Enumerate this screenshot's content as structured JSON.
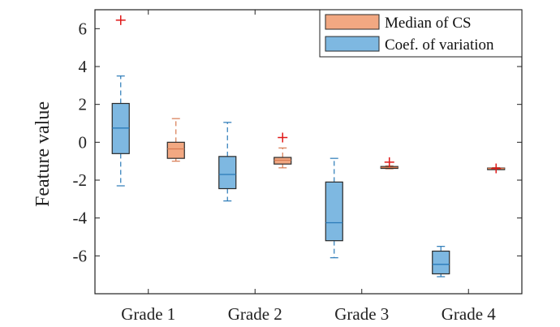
{
  "chart_data": {
    "type": "boxplot",
    "title": "",
    "xlabel": "",
    "ylabel": "Feature value",
    "ylim": [
      -8,
      7
    ],
    "yticks": [
      6,
      4,
      2,
      0,
      -2,
      -4,
      -6
    ],
    "ytick_labels": [
      "6",
      "4",
      "2",
      "0",
      "-2",
      "-4",
      "-6"
    ],
    "categories": [
      "Grade 1",
      "Grade 2",
      "Grade 3",
      "Grade 4"
    ],
    "legend": {
      "location": "top-right"
    },
    "series": [
      {
        "name": "Coef. of variation",
        "color": "#7eb8e1",
        "edge": "#2a2a2a",
        "whisker_color": "#2a7ab8",
        "boxes": [
          {
            "category": "Grade 1",
            "min": -2.3,
            "q1": -0.6,
            "median": 0.75,
            "q3": 2.05,
            "max": 3.5,
            "outliers": [
              6.45
            ]
          },
          {
            "category": "Grade 2",
            "min": -3.1,
            "q1": -2.45,
            "median": -1.7,
            "q3": -0.75,
            "max": 1.05,
            "outliers": []
          },
          {
            "category": "Grade 3",
            "min": -6.1,
            "q1": -5.2,
            "median": -4.25,
            "q3": -2.1,
            "max": -0.85,
            "outliers": []
          },
          {
            "category": "Grade 4",
            "min": -7.1,
            "q1": -6.95,
            "median": -6.45,
            "q3": -5.75,
            "max": -5.5,
            "outliers": []
          }
        ]
      },
      {
        "name": "Median of CS",
        "color": "#f2a882",
        "edge": "#2a2a2a",
        "whisker_color": "#d77a52",
        "boxes": [
          {
            "category": "Grade 1",
            "min": -1.0,
            "q1": -0.85,
            "median": -0.35,
            "q3": 0.0,
            "max": 1.25,
            "outliers": []
          },
          {
            "category": "Grade 2",
            "min": -1.35,
            "q1": -1.15,
            "median": -0.95,
            "q3": -0.8,
            "max": -0.3,
            "outliers": [
              0.25
            ]
          },
          {
            "category": "Grade 3",
            "min": -1.4,
            "q1": -1.38,
            "median": -1.33,
            "q3": -1.28,
            "max": -1.25,
            "outliers": [
              -1.05
            ]
          },
          {
            "category": "Grade 4",
            "min": -1.42,
            "q1": -1.4,
            "median": -1.38,
            "q3": -1.36,
            "max": -1.34,
            "outliers": [
              -1.38
            ]
          }
        ]
      }
    ]
  }
}
